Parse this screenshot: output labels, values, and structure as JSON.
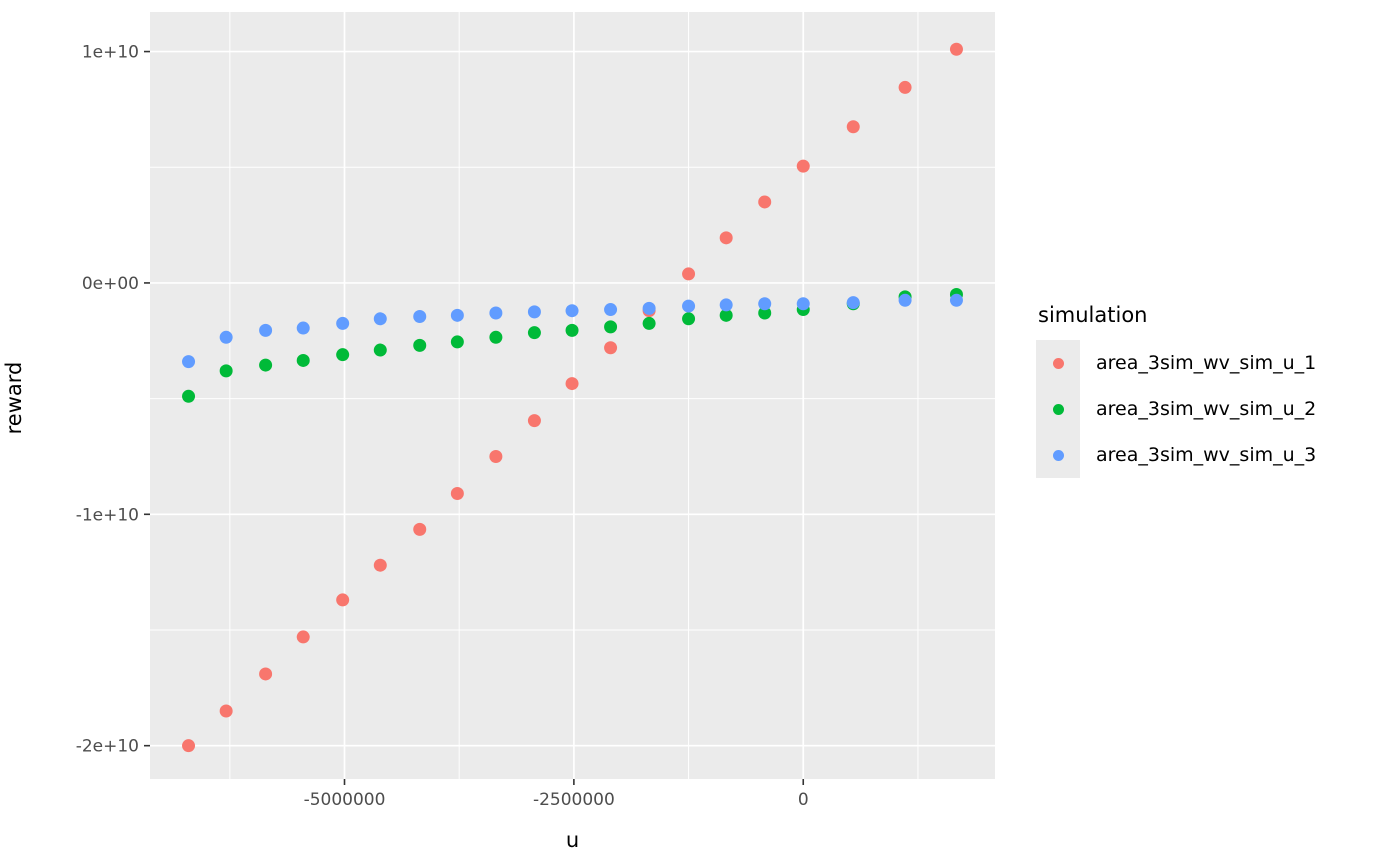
{
  "chart_data": {
    "type": "scatter",
    "title": "",
    "xlabel": "u",
    "ylabel": "reward",
    "legend_title": "simulation",
    "legend_position": "right",
    "grid": true,
    "panel_background": "#EBEBEB",
    "gridline_color": "#FFFFFF",
    "tick_text_color": "#4D4D4D",
    "tick_mark_color": "#333333",
    "xlim": [
      -7120000,
      2090000
    ],
    "ylim": [
      -21440000000,
      11710000000
    ],
    "x_ticks": [
      {
        "value": -5000000,
        "label": "-5000000"
      },
      {
        "value": -2500000,
        "label": "-2500000"
      },
      {
        "value": 0,
        "label": "0"
      }
    ],
    "y_ticks": [
      {
        "value": 10000000000,
        "label": "1e+10"
      },
      {
        "value": 0,
        "label": "0e+00"
      },
      {
        "value": -10000000000,
        "label": "-1e+10"
      },
      {
        "value": -20000000000,
        "label": "-2e+10"
      }
    ],
    "x_minor_breaks": [
      -6250000,
      -3750000,
      -1250000,
      1250000
    ],
    "y_minor_breaks": [
      5000000000,
      -5000000000,
      -15000000000
    ],
    "x": [
      -6700000,
      -6290000,
      -5860000,
      -5450000,
      -5020000,
      -4610000,
      -4180000,
      -3770000,
      -3350000,
      -2930000,
      -2520000,
      -2100000,
      -1680000,
      -1250000,
      -840000,
      -420000,
      0,
      545000,
      1110000,
      1670000
    ],
    "series": [
      {
        "name": "area_3sim_wv_sim_u_1",
        "color": "#F8766D",
        "values": [
          -20000000000,
          -18500000000,
          -16900000000,
          -15300000000,
          -13700000000,
          -12200000000,
          -10650000000,
          -9100000000,
          -7500000000,
          -5950000000,
          -4350000000,
          -2800000000,
          -1200000000,
          390000000,
          1950000000,
          3500000000,
          5050000000,
          6750000000,
          8450000000,
          10100000000
        ]
      },
      {
        "name": "area_3sim_wv_sim_u_2",
        "color": "#00BA38",
        "values": [
          -4900000000,
          -3800000000,
          -3550000000,
          -3350000000,
          -3100000000,
          -2900000000,
          -2700000000,
          -2550000000,
          -2350000000,
          -2150000000,
          -2050000000,
          -1900000000,
          -1750000000,
          -1550000000,
          -1400000000,
          -1300000000,
          -1150000000,
          -900000000,
          -600000000,
          -500000000
        ]
      },
      {
        "name": "area_3sim_wv_sim_u_3",
        "color": "#619CFF",
        "values": [
          -3400000000,
          -2350000000,
          -2050000000,
          -1950000000,
          -1750000000,
          -1550000000,
          -1450000000,
          -1400000000,
          -1300000000,
          -1250000000,
          -1200000000,
          -1150000000,
          -1100000000,
          -1000000000,
          -950000000,
          -900000000,
          -900000000,
          -850000000,
          -750000000,
          -750000000
        ]
      }
    ]
  }
}
